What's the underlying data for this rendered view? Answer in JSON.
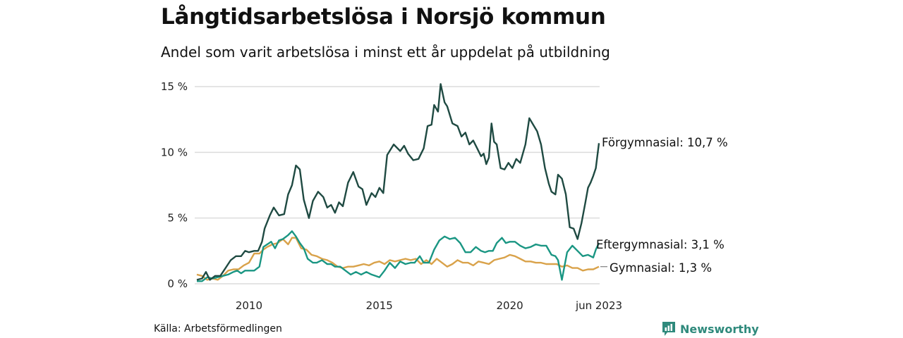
{
  "header": {
    "title": "Långtidsarbetslösa i Norsjö kommun",
    "subtitle": "Andel som varit arbetslösa i minst ett år uppdelat på utbildning"
  },
  "footer": {
    "source": "Källa: Arbetsförmedlingen",
    "brand": "Newsworthy",
    "brand_icon": "bar-chart-speech-icon",
    "brand_color": "#2f8a7c"
  },
  "chart_data": {
    "type": "line",
    "title": "Långtidsarbetslösa i Norsjö kommun",
    "subtitle": "Andel som varit arbetslösa i minst ett år uppdelat på utbildning",
    "xlabel": "",
    "ylabel": "",
    "xlim": [
      2008.0,
      2023.42
    ],
    "ylim": [
      0,
      15
    ],
    "grid": true,
    "x_ticks": [
      {
        "value": 2010,
        "label": "2010"
      },
      {
        "value": 2015,
        "label": "2015"
      },
      {
        "value": 2020,
        "label": "2020"
      },
      {
        "value": 2023.42,
        "label": "jun 2023"
      }
    ],
    "y_ticks": [
      {
        "value": 0,
        "label": "0 %"
      },
      {
        "value": 5,
        "label": "5 %"
      },
      {
        "value": 10,
        "label": "10 %"
      },
      {
        "value": 15,
        "label": "15 %"
      }
    ],
    "series": [
      {
        "name": "Förgymnasial",
        "end_label": "Förgymnasial: 10,7 %",
        "color": "#1f4a42",
        "x": [
          2008.0,
          2008.2,
          2008.35,
          2008.5,
          2008.7,
          2008.9,
          2009.1,
          2009.3,
          2009.5,
          2009.7,
          2009.85,
          2010.0,
          2010.2,
          2010.35,
          2010.5,
          2010.6,
          2010.8,
          2010.95,
          2011.15,
          2011.35,
          2011.5,
          2011.65,
          2011.8,
          2011.95,
          2012.1,
          2012.3,
          2012.45,
          2012.65,
          2012.85,
          2013.0,
          2013.15,
          2013.3,
          2013.45,
          2013.6,
          2013.8,
          2014.0,
          2014.2,
          2014.35,
          2014.5,
          2014.7,
          2014.85,
          2015.0,
          2015.15,
          2015.3,
          2015.55,
          2015.8,
          2015.95,
          2016.1,
          2016.3,
          2016.5,
          2016.7,
          2016.85,
          2017.0,
          2017.1,
          2017.25,
          2017.35,
          2017.5,
          2017.6,
          2017.8,
          2018.0,
          2018.15,
          2018.3,
          2018.45,
          2018.6,
          2018.75,
          2018.9,
          2019.0,
          2019.1,
          2019.2,
          2019.3,
          2019.4,
          2019.5,
          2019.65,
          2019.8,
          2019.95,
          2020.1,
          2020.25,
          2020.4,
          2020.6,
          2020.75,
          2020.9,
          2021.05,
          2021.2,
          2021.35,
          2021.5,
          2021.6,
          2021.75,
          2021.85,
          2022.0,
          2022.15,
          2022.3,
          2022.45,
          2022.6,
          2022.75,
          2022.9,
          2023.0,
          2023.1,
          2023.2,
          2023.3,
          2023.42
        ],
        "values": [
          0.3,
          0.4,
          0.9,
          0.3,
          0.6,
          0.6,
          1.2,
          1.8,
          2.1,
          2.1,
          2.5,
          2.4,
          2.5,
          2.5,
          3.2,
          4.2,
          5.2,
          5.8,
          5.2,
          5.3,
          6.8,
          7.5,
          9.0,
          8.7,
          6.4,
          5.0,
          6.3,
          7.0,
          6.6,
          5.8,
          6.0,
          5.4,
          6.2,
          5.9,
          7.7,
          8.5,
          7.4,
          7.2,
          6.0,
          6.9,
          6.6,
          7.3,
          6.9,
          9.8,
          10.6,
          10.1,
          10.5,
          9.9,
          9.4,
          9.5,
          10.3,
          12.0,
          12.1,
          13.6,
          13.1,
          15.2,
          13.8,
          13.5,
          12.2,
          12.0,
          11.2,
          11.5,
          10.6,
          10.9,
          10.3,
          9.7,
          9.9,
          9.1,
          9.6,
          12.2,
          10.8,
          10.6,
          8.8,
          8.7,
          9.2,
          8.8,
          9.5,
          9.2,
          10.6,
          12.6,
          12.1,
          11.6,
          10.6,
          8.8,
          7.6,
          7.0,
          6.8,
          8.3,
          8.0,
          6.8,
          4.3,
          4.2,
          3.4,
          4.6,
          6.2,
          7.3,
          7.7,
          8.2,
          8.8,
          10.7
        ]
      },
      {
        "name": "Eftergymnasial",
        "end_label": "Eftergymnasial:  3,1 %",
        "color": "#1a9683",
        "x": [
          2008.0,
          2008.2,
          2008.4,
          2008.6,
          2008.8,
          2009.0,
          2009.2,
          2009.4,
          2009.55,
          2009.7,
          2009.85,
          2010.0,
          2010.2,
          2010.4,
          2010.55,
          2010.7,
          2010.85,
          2011.0,
          2011.15,
          2011.3,
          2011.5,
          2011.65,
          2011.8,
          2011.95,
          2012.1,
          2012.25,
          2012.45,
          2012.6,
          2012.8,
          2013.0,
          2013.15,
          2013.3,
          2013.5,
          2013.7,
          2013.9,
          2014.1,
          2014.3,
          2014.5,
          2014.7,
          2014.85,
          2015.0,
          2015.2,
          2015.4,
          2015.6,
          2015.8,
          2016.0,
          2016.2,
          2016.35,
          2016.55,
          2016.7,
          2016.9,
          2017.1,
          2017.3,
          2017.5,
          2017.7,
          2017.9,
          2018.1,
          2018.3,
          2018.5,
          2018.7,
          2018.9,
          2019.05,
          2019.2,
          2019.35,
          2019.5,
          2019.7,
          2019.85,
          2020.0,
          2020.2,
          2020.4,
          2020.6,
          2020.8,
          2021.0,
          2021.2,
          2021.4,
          2021.6,
          2021.75,
          2021.85,
          2022.0,
          2022.2,
          2022.4,
          2022.6,
          2022.8,
          2023.0,
          2023.2,
          2023.3,
          2023.42
        ],
        "values": [
          0.2,
          0.2,
          0.5,
          0.4,
          0.5,
          0.6,
          0.7,
          0.9,
          1.0,
          0.8,
          1.0,
          1.0,
          1.0,
          1.3,
          2.8,
          3.0,
          3.2,
          2.7,
          3.3,
          3.4,
          3.7,
          4.0,
          3.6,
          3.1,
          2.7,
          1.9,
          1.6,
          1.6,
          1.8,
          1.5,
          1.5,
          1.3,
          1.3,
          1.0,
          0.7,
          0.9,
          0.7,
          0.9,
          0.7,
          0.6,
          0.5,
          1.0,
          1.6,
          1.2,
          1.7,
          1.5,
          1.6,
          1.6,
          2.1,
          1.6,
          1.6,
          2.6,
          3.3,
          3.6,
          3.4,
          3.5,
          3.1,
          2.4,
          2.4,
          2.8,
          2.5,
          2.4,
          2.5,
          2.5,
          3.1,
          3.5,
          3.1,
          3.2,
          3.2,
          2.9,
          2.7,
          2.8,
          3.0,
          2.9,
          2.9,
          2.2,
          2.1,
          1.8,
          0.3,
          2.4,
          2.9,
          2.5,
          2.1,
          2.2,
          2.0,
          2.6,
          3.1
        ]
      },
      {
        "name": "Gymnasial",
        "end_label": "Gymnasial:  1,3 %",
        "color": "#d9a24a",
        "x": [
          2008.0,
          2008.2,
          2008.4,
          2008.6,
          2008.8,
          2009.0,
          2009.2,
          2009.4,
          2009.6,
          2009.8,
          2010.0,
          2010.2,
          2010.4,
          2010.55,
          2010.7,
          2010.9,
          2011.1,
          2011.3,
          2011.5,
          2011.65,
          2011.8,
          2012.0,
          2012.2,
          2012.4,
          2012.6,
          2012.8,
          2013.0,
          2013.2,
          2013.4,
          2013.6,
          2013.8,
          2014.0,
          2014.2,
          2014.4,
          2014.6,
          2014.8,
          2015.0,
          2015.2,
          2015.4,
          2015.6,
          2015.8,
          2016.0,
          2016.2,
          2016.4,
          2016.6,
          2016.8,
          2017.0,
          2017.2,
          2017.4,
          2017.6,
          2017.8,
          2018.0,
          2018.2,
          2018.4,
          2018.6,
          2018.8,
          2019.0,
          2019.2,
          2019.4,
          2019.6,
          2019.8,
          2020.0,
          2020.2,
          2020.4,
          2020.6,
          2020.8,
          2021.0,
          2021.2,
          2021.4,
          2021.6,
          2021.8,
          2022.0,
          2022.2,
          2022.4,
          2022.6,
          2022.8,
          2023.0,
          2023.2,
          2023.42
        ],
        "values": [
          0.7,
          0.6,
          0.3,
          0.4,
          0.3,
          0.6,
          1.0,
          1.1,
          1.1,
          1.4,
          1.6,
          2.3,
          2.3,
          2.6,
          2.8,
          3.0,
          3.1,
          3.4,
          3.0,
          3.5,
          3.5,
          2.7,
          2.6,
          2.2,
          2.1,
          1.9,
          1.8,
          1.6,
          1.3,
          1.2,
          1.3,
          1.3,
          1.4,
          1.5,
          1.4,
          1.6,
          1.7,
          1.5,
          1.8,
          1.7,
          1.8,
          1.9,
          1.8,
          1.9,
          1.5,
          1.8,
          1.5,
          1.9,
          1.6,
          1.3,
          1.5,
          1.8,
          1.6,
          1.6,
          1.4,
          1.7,
          1.6,
          1.5,
          1.8,
          1.9,
          2.0,
          2.2,
          2.1,
          1.9,
          1.7,
          1.7,
          1.6,
          1.6,
          1.5,
          1.5,
          1.5,
          1.3,
          1.4,
          1.2,
          1.2,
          1.0,
          1.1,
          1.1,
          1.3
        ]
      }
    ]
  }
}
